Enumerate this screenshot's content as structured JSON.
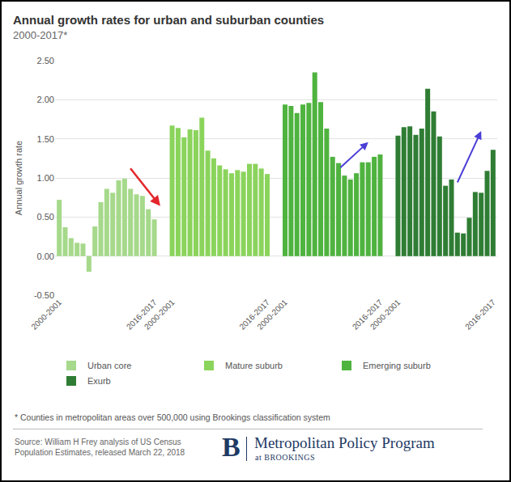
{
  "chart_data": {
    "type": "bar",
    "title": "Annual growth rates for urban and suburban counties",
    "subtitle": "2000-2017*",
    "y_label": "Annual growth rate",
    "categories": [
      "2000-2001",
      null,
      null,
      null,
      null,
      null,
      null,
      null,
      null,
      null,
      null,
      null,
      null,
      null,
      null,
      null,
      "2016-2017"
    ],
    "series": [
      {
        "name": "Urban core",
        "color": "#a6d98b",
        "values": [
          0.72,
          0.37,
          0.23,
          0.17,
          0.16,
          -0.2,
          0.38,
          0.69,
          0.86,
          0.81,
          0.97,
          0.99,
          0.86,
          0.79,
          0.77,
          0.6,
          0.47
        ]
      },
      {
        "name": "Mature suburb",
        "color": "#8bd45c",
        "values": [
          1.67,
          1.64,
          1.52,
          1.62,
          1.61,
          1.77,
          1.35,
          1.25,
          1.16,
          1.11,
          1.06,
          1.1,
          1.08,
          1.18,
          1.18,
          1.12,
          1.05
        ]
      },
      {
        "name": "Emerging suburb",
        "color": "#4fb33f",
        "values": [
          1.94,
          1.92,
          1.83,
          1.94,
          1.96,
          2.35,
          1.97,
          1.63,
          1.27,
          1.19,
          1.03,
          0.98,
          1.06,
          1.2,
          1.2,
          1.27,
          1.3
        ]
      },
      {
        "name": "Exurb",
        "color": "#2f7d34",
        "values": [
          1.54,
          1.65,
          1.66,
          1.55,
          1.63,
          2.14,
          1.85,
          1.53,
          0.9,
          0.98,
          0.3,
          0.29,
          0.49,
          0.82,
          0.81,
          1.09,
          1.36
        ]
      }
    ],
    "ylim": [
      -0.5,
      2.5
    ],
    "yticks": [
      {
        "value": -0.5,
        "label": "-0.50"
      },
      {
        "value": 0,
        "label": "0.00"
      },
      {
        "value": 0.5,
        "label": "0.50"
      },
      {
        "value": 1,
        "label": "1.00"
      },
      {
        "value": 1.5,
        "label": "1.50"
      },
      {
        "value": 2,
        "label": "2.00"
      },
      {
        "value": 2.5,
        "label": "2.50"
      }
    ],
    "grid": true,
    "legend": "bottom",
    "footnote": "* Counties in metropolitan areas over 500,000 using Brookings classification system",
    "source": "Source: William H Frey analysis of US Census Population Estimates, released March 22, 2018",
    "logo": {
      "letter": "B",
      "name": "Metropolitan Policy Program",
      "subname": "at BROOKINGS"
    }
  }
}
